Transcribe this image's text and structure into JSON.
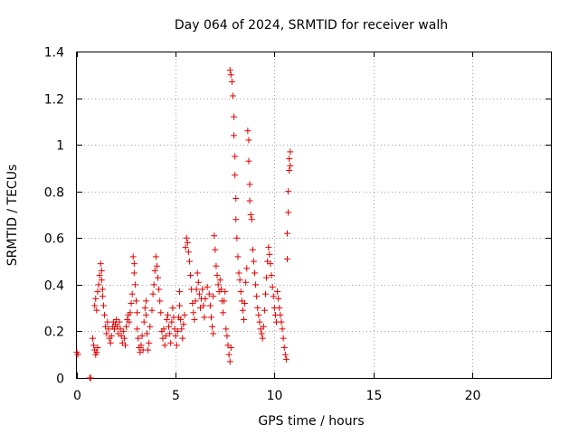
{
  "chart_data": {
    "type": "scatter",
    "title": "Day 064 of 2024, SRMTID for receiver walh",
    "xlabel": "GPS time / hours",
    "ylabel": "SRMTID / TECUs",
    "xlim": [
      0,
      24
    ],
    "ylim": [
      0,
      1.4
    ],
    "xticks": [
      0,
      5,
      10,
      15,
      20
    ],
    "xtick_labels": [
      "0",
      "5",
      "10",
      "15",
      "20"
    ],
    "yticks": [
      0,
      0.2,
      0.4,
      0.6,
      0.8,
      1.0,
      1.2,
      1.4
    ],
    "ytick_labels": [
      "0",
      "0.2",
      "0.4",
      "0.6",
      "0.8",
      "1",
      "1.2",
      "1.4"
    ],
    "grid": true,
    "marker": "+",
    "color": "#e00000",
    "series": [
      {
        "name": "walh",
        "points": [
          [
            0.0,
            0.11
          ],
          [
            0.05,
            0.1
          ],
          [
            0.7,
            0.0
          ],
          [
            0.65,
            0.0
          ],
          [
            0.8,
            0.17
          ],
          [
            0.85,
            0.14
          ],
          [
            0.9,
            0.12
          ],
          [
            0.95,
            0.1
          ],
          [
            1.0,
            0.11
          ],
          [
            1.05,
            0.13
          ],
          [
            0.9,
            0.31
          ],
          [
            0.95,
            0.34
          ],
          [
            1.0,
            0.29
          ],
          [
            1.05,
            0.37
          ],
          [
            1.1,
            0.4
          ],
          [
            1.15,
            0.44
          ],
          [
            1.2,
            0.49
          ],
          [
            1.25,
            0.46
          ],
          [
            1.25,
            0.42
          ],
          [
            1.3,
            0.38
          ],
          [
            1.3,
            0.35
          ],
          [
            1.35,
            0.31
          ],
          [
            1.4,
            0.27
          ],
          [
            1.45,
            0.22
          ],
          [
            1.5,
            0.19
          ],
          [
            1.55,
            0.24
          ],
          [
            1.6,
            0.21
          ],
          [
            1.65,
            0.17
          ],
          [
            1.7,
            0.15
          ],
          [
            1.75,
            0.18
          ],
          [
            1.8,
            0.22
          ],
          [
            1.85,
            0.24
          ],
          [
            1.9,
            0.21
          ],
          [
            1.95,
            0.23
          ],
          [
            2.0,
            0.25
          ],
          [
            2.05,
            0.22
          ],
          [
            2.1,
            0.19
          ],
          [
            2.15,
            0.24
          ],
          [
            2.2,
            0.21
          ],
          [
            2.25,
            0.18
          ],
          [
            2.3,
            0.15
          ],
          [
            2.35,
            0.2
          ],
          [
            2.4,
            0.17
          ],
          [
            2.45,
            0.14
          ],
          [
            2.5,
            0.22
          ],
          [
            2.55,
            0.25
          ],
          [
            2.6,
            0.27
          ],
          [
            2.65,
            0.24
          ],
          [
            2.7,
            0.28
          ],
          [
            2.75,
            0.32
          ],
          [
            2.8,
            0.36
          ],
          [
            2.85,
            0.52
          ],
          [
            2.9,
            0.49
          ],
          [
            2.9,
            0.45
          ],
          [
            2.95,
            0.4
          ],
          [
            3.0,
            0.33
          ],
          [
            3.05,
            0.28
          ],
          [
            3.05,
            0.21
          ],
          [
            3.1,
            0.17
          ],
          [
            3.15,
            0.13
          ],
          [
            3.2,
            0.11
          ],
          [
            3.25,
            0.14
          ],
          [
            3.3,
            0.18
          ],
          [
            3.35,
            0.12
          ],
          [
            3.4,
            0.24
          ],
          [
            3.45,
            0.3
          ],
          [
            3.5,
            0.33
          ],
          [
            3.5,
            0.27
          ],
          [
            3.55,
            0.19
          ],
          [
            3.6,
            0.12
          ],
          [
            3.65,
            0.15
          ],
          [
            3.7,
            0.22
          ],
          [
            3.8,
            0.29
          ],
          [
            3.85,
            0.36
          ],
          [
            3.9,
            0.4
          ],
          [
            3.95,
            0.46
          ],
          [
            4.0,
            0.52
          ],
          [
            4.05,
            0.48
          ],
          [
            4.1,
            0.43
          ],
          [
            4.15,
            0.38
          ],
          [
            4.2,
            0.33
          ],
          [
            4.25,
            0.28
          ],
          [
            4.3,
            0.2
          ],
          [
            4.35,
            0.17
          ],
          [
            4.4,
            0.21
          ],
          [
            4.45,
            0.14
          ],
          [
            4.5,
            0.18
          ],
          [
            4.55,
            0.25
          ],
          [
            4.6,
            0.27
          ],
          [
            4.65,
            0.22
          ],
          [
            4.7,
            0.19
          ],
          [
            4.75,
            0.15
          ],
          [
            4.8,
            0.24
          ],
          [
            4.85,
            0.3
          ],
          [
            4.9,
            0.26
          ],
          [
            4.95,
            0.21
          ],
          [
            5.0,
            0.18
          ],
          [
            5.05,
            0.14
          ],
          [
            5.1,
            0.2
          ],
          [
            5.15,
            0.26
          ],
          [
            5.2,
            0.31
          ],
          [
            5.2,
            0.37
          ],
          [
            5.25,
            0.25
          ],
          [
            5.3,
            0.21
          ],
          [
            5.35,
            0.17
          ],
          [
            5.4,
            0.23
          ],
          [
            5.45,
            0.27
          ],
          [
            5.5,
            0.56
          ],
          [
            5.55,
            0.6
          ],
          [
            5.6,
            0.58
          ],
          [
            5.65,
            0.54
          ],
          [
            5.7,
            0.5
          ],
          [
            5.75,
            0.44
          ],
          [
            5.8,
            0.38
          ],
          [
            5.85,
            0.32
          ],
          [
            5.9,
            0.28
          ],
          [
            5.95,
            0.25
          ],
          [
            6.0,
            0.33
          ],
          [
            6.05,
            0.38
          ],
          [
            6.1,
            0.45
          ],
          [
            6.15,
            0.41
          ],
          [
            6.2,
            0.36
          ],
          [
            6.25,
            0.3
          ],
          [
            6.3,
            0.34
          ],
          [
            6.35,
            0.38
          ],
          [
            6.4,
            0.31
          ],
          [
            6.45,
            0.26
          ],
          [
            6.5,
            0.34
          ],
          [
            6.6,
            0.39
          ],
          [
            6.7,
            0.36
          ],
          [
            6.75,
            0.31
          ],
          [
            6.8,
            0.26
          ],
          [
            6.85,
            0.22
          ],
          [
            6.9,
            0.19
          ],
          [
            6.9,
            0.35
          ],
          [
            6.95,
            0.61
          ],
          [
            7.0,
            0.55
          ],
          [
            7.05,
            0.48
          ],
          [
            7.1,
            0.44
          ],
          [
            7.15,
            0.4
          ],
          [
            7.2,
            0.37
          ],
          [
            7.25,
            0.42
          ],
          [
            7.3,
            0.38
          ],
          [
            7.35,
            0.33
          ],
          [
            7.4,
            0.28
          ],
          [
            7.45,
            0.33
          ],
          [
            7.5,
            0.37
          ],
          [
            7.55,
            0.21
          ],
          [
            7.6,
            0.18
          ],
          [
            7.65,
            0.14
          ],
          [
            7.7,
            0.1
          ],
          [
            7.75,
            0.07
          ],
          [
            7.8,
            0.13
          ],
          [
            7.75,
            1.32
          ],
          [
            7.8,
            1.3
          ],
          [
            7.85,
            1.27
          ],
          [
            7.9,
            1.21
          ],
          [
            7.95,
            1.12
          ],
          [
            7.95,
            1.04
          ],
          [
            8.0,
            0.95
          ],
          [
            8.0,
            0.87
          ],
          [
            8.05,
            0.77
          ],
          [
            8.05,
            0.68
          ],
          [
            8.1,
            0.6
          ],
          [
            8.15,
            0.52
          ],
          [
            8.2,
            0.45
          ],
          [
            8.25,
            0.42
          ],
          [
            8.3,
            0.37
          ],
          [
            8.35,
            0.33
          ],
          [
            8.4,
            0.29
          ],
          [
            8.45,
            0.25
          ],
          [
            8.5,
            0.32
          ],
          [
            8.55,
            0.41
          ],
          [
            8.6,
            0.47
          ],
          [
            8.65,
            1.06
          ],
          [
            8.7,
            1.02
          ],
          [
            8.7,
            0.93
          ],
          [
            8.75,
            0.83
          ],
          [
            8.75,
            0.76
          ],
          [
            8.8,
            0.7
          ],
          [
            8.85,
            0.68
          ],
          [
            8.9,
            0.55
          ],
          [
            8.95,
            0.5
          ],
          [
            9.0,
            0.45
          ],
          [
            9.05,
            0.4
          ],
          [
            9.1,
            0.35
          ],
          [
            9.15,
            0.3
          ],
          [
            9.2,
            0.27
          ],
          [
            9.25,
            0.24
          ],
          [
            9.3,
            0.21
          ],
          [
            9.35,
            0.19
          ],
          [
            9.4,
            0.17
          ],
          [
            9.45,
            0.22
          ],
          [
            9.5,
            0.29
          ],
          [
            9.55,
            0.36
          ],
          [
            9.6,
            0.43
          ],
          [
            9.65,
            0.5
          ],
          [
            9.7,
            0.56
          ],
          [
            9.75,
            0.53
          ],
          [
            9.8,
            0.49
          ],
          [
            9.85,
            0.44
          ],
          [
            9.9,
            0.39
          ],
          [
            9.95,
            0.35
          ],
          [
            10.0,
            0.3
          ],
          [
            10.05,
            0.27
          ],
          [
            10.1,
            0.24
          ],
          [
            10.15,
            0.37
          ],
          [
            10.2,
            0.34
          ],
          [
            10.25,
            0.3
          ],
          [
            10.3,
            0.27
          ],
          [
            10.35,
            0.24
          ],
          [
            10.4,
            0.21
          ],
          [
            10.45,
            0.17
          ],
          [
            10.5,
            0.13
          ],
          [
            10.55,
            0.1
          ],
          [
            10.6,
            0.08
          ],
          [
            10.65,
            0.51
          ],
          [
            10.65,
            0.62
          ],
          [
            10.7,
            0.71
          ],
          [
            10.7,
            0.8
          ],
          [
            10.75,
            0.89
          ],
          [
            10.75,
            0.94
          ],
          [
            10.8,
            0.97
          ],
          [
            10.8,
            0.91
          ]
        ]
      }
    ]
  }
}
